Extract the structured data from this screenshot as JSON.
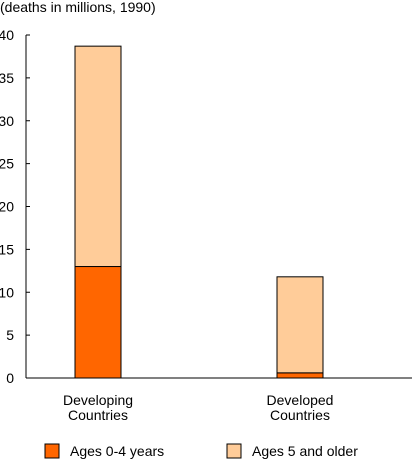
{
  "chart_data": {
    "type": "bar",
    "stacked": true,
    "title": "(deaths in millions, 1990)",
    "xlabel": "",
    "ylabel": "",
    "ylim": [
      0,
      40
    ],
    "y_ticks": [
      "0",
      "5",
      "10",
      "15",
      "20",
      "25",
      "30",
      "35",
      "40"
    ],
    "grid": false,
    "legend_position": "bottom",
    "categories": [
      {
        "lines": [
          "Developing",
          "Countries"
        ]
      },
      {
        "lines": [
          "Developed",
          "Countries"
        ]
      }
    ],
    "series": [
      {
        "name": "Ages 0-4 years",
        "color": "#ff6600",
        "values": [
          13.0,
          0.6
        ]
      },
      {
        "name": "Ages 5 and older",
        "color": "#ffcc99",
        "values": [
          25.7,
          11.2
        ]
      }
    ]
  }
}
